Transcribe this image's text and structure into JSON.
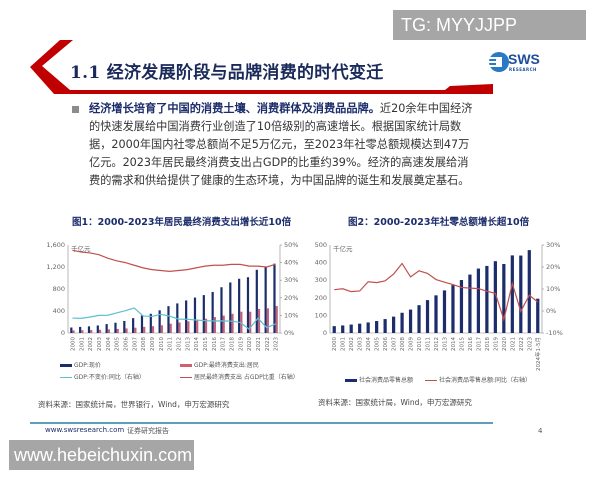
{
  "watermarks": {
    "top": "TG: MYYJJPP",
    "bottom": "www.hebeichuxin.com"
  },
  "header": {
    "title": "1.1 经济发展阶段与品牌消费的时代变迁",
    "logo_text": "SWS",
    "logo_sub": "RESEARCH",
    "accent_color": "#c00000"
  },
  "body": {
    "bold_lead": "经济增长培育了中国的消费土壤、消费群体及消费品品牌。",
    "text": "近20余年中国经济的快速发展给中国消费行业创造了10倍级别的高速增长。根据国家统计局数据，2000年国内社零总额尚不足5万亿元，至2023年社零总额规模达到47万亿元。2023年居民最终消费支出占GDP的比重约39%。经济的高速发展给消费的需求和供给提供了健康的生态环境，为中国品牌的诞生和发展奠定基石。"
  },
  "figure1": {
    "title": "图1：2000-2023年居民最终消费支出增长近10倍",
    "unit": "千亿元",
    "legend": [
      "GDP:现价",
      "GDP:最终消费支出:居民",
      "GDP:不变价:同比（右轴）",
      "居民最终消费支出 占GDP比重（右轴）"
    ],
    "source": "资料来源：国家统计局，世界银行，Wind，申万宏源研究"
  },
  "figure2": {
    "title": "图2：2000-2023年社零总额增长超10倍",
    "unit": "千亿元",
    "legend": [
      "社会消费品零售总额",
      "社会消费品零售总额:同比（右轴）"
    ],
    "source": "资料来源：国家统计局，Wind，申万宏源研究"
  },
  "footer": {
    "url": "www.swsresearch.com",
    "label": "证券研究报告",
    "page": "4"
  },
  "chart_data": [
    {
      "type": "bar",
      "title": "图1：2000-2023年居民最终消费支出增长近10倍",
      "ylabel": "千亿元",
      "ylim": [
        0,
        1600
      ],
      "yticks": [
        "0",
        "400",
        "800",
        "1,200",
        "1,600"
      ],
      "y2lim": [
        0,
        50
      ],
      "y2ticks": [
        "0%",
        "10%",
        "20%",
        "30%",
        "40%",
        "50%"
      ],
      "categories": [
        "2000",
        "2001",
        "2002",
        "2003",
        "2004",
        "2005",
        "2006",
        "2007",
        "2008",
        "2009",
        "2010",
        "2011",
        "2012",
        "2013",
        "2014",
        "2015",
        "2016",
        "2017",
        "2018",
        "2019",
        "2020",
        "2021",
        "2022",
        "2023"
      ],
      "series": [
        {
          "name": "GDP:现价",
          "type": "bar",
          "color": "#1c2d6b",
          "values": [
            100,
            110,
            121,
            137,
            162,
            187,
            219,
            270,
            319,
            349,
            412,
            488,
            538,
            592,
            644,
            689,
            746,
            832,
            919,
            986,
            1014,
            1149,
            1204,
            1260
          ]
        },
        {
          "name": "GDP:最终消费支出:居民",
          "type": "bar",
          "color": "#c0607a",
          "values": [
            47,
            51,
            55,
            59,
            66,
            74,
            83,
            96,
            112,
            124,
            141,
            169,
            191,
            213,
            236,
            260,
            289,
            317,
            349,
            387,
            387,
            438,
            449,
            490
          ]
        },
        {
          "name": "GDP:不变价:同比（右轴）",
          "type": "line",
          "axis": "right",
          "color": "#5bc0d0",
          "values": [
            8.5,
            8.3,
            9.1,
            10.0,
            10.1,
            11.4,
            12.7,
            14.2,
            9.7,
            9.4,
            10.6,
            9.6,
            7.9,
            7.8,
            7.4,
            7.0,
            6.8,
            6.9,
            6.7,
            6.0,
            2.2,
            8.4,
            3.0,
            5.2
          ]
        },
        {
          "name": "居民最终消费支出 占GDP比重（右轴）",
          "type": "line",
          "axis": "right",
          "color": "#c0504d",
          "values": [
            47,
            46,
            45.5,
            44.5,
            42.5,
            41,
            40,
            38.5,
            37,
            36,
            35.5,
            35,
            35.5,
            36,
            37,
            38,
            38.5,
            38.5,
            39,
            39,
            38,
            38,
            37.5,
            39
          ]
        }
      ]
    },
    {
      "type": "bar",
      "title": "图2：2000-2023年社零总额增长超10倍",
      "ylabel": "千亿元",
      "ylim": [
        0,
        500
      ],
      "yticks": [
        "0",
        "100",
        "200",
        "300",
        "400",
        "500"
      ],
      "y2lim": [
        -10,
        30
      ],
      "y2ticks": [
        "-10%",
        "0%",
        "10%",
        "20%",
        "30%"
      ],
      "categories": [
        "2000",
        "2001",
        "2002",
        "2003",
        "2004",
        "2005",
        "2006",
        "2007",
        "2008",
        "2009",
        "2010",
        "2011",
        "2012",
        "2013",
        "2014",
        "2015",
        "2016",
        "2017",
        "2018",
        "2019",
        "2020",
        "2021",
        "2022",
        "2023",
        "2024年1-5月"
      ],
      "series": [
        {
          "name": "社会消费品零售总额",
          "type": "bar",
          "color": "#1c2d6b",
          "values": [
            39,
            43,
            48,
            53,
            60,
            68,
            79,
            93,
            115,
            133,
            158,
            187,
            214,
            242,
            272,
            301,
            332,
            366,
            381,
            408,
            392,
            441,
            440,
            471,
            195
          ]
        },
        {
          "name": "社会消费品零售总额:同比（右轴）",
          "type": "line",
          "axis": "right",
          "color": "#c0504d",
          "values": [
            9.7,
            10.1,
            8.8,
            9.1,
            13.3,
            12.9,
            13.7,
            16.8,
            21.6,
            15.5,
            18.3,
            17.1,
            14.3,
            13.1,
            12.0,
            10.7,
            10.4,
            10.2,
            9.0,
            8.0,
            -3.9,
            12.5,
            -0.2,
            7.2,
            4.1
          ]
        }
      ]
    }
  ]
}
